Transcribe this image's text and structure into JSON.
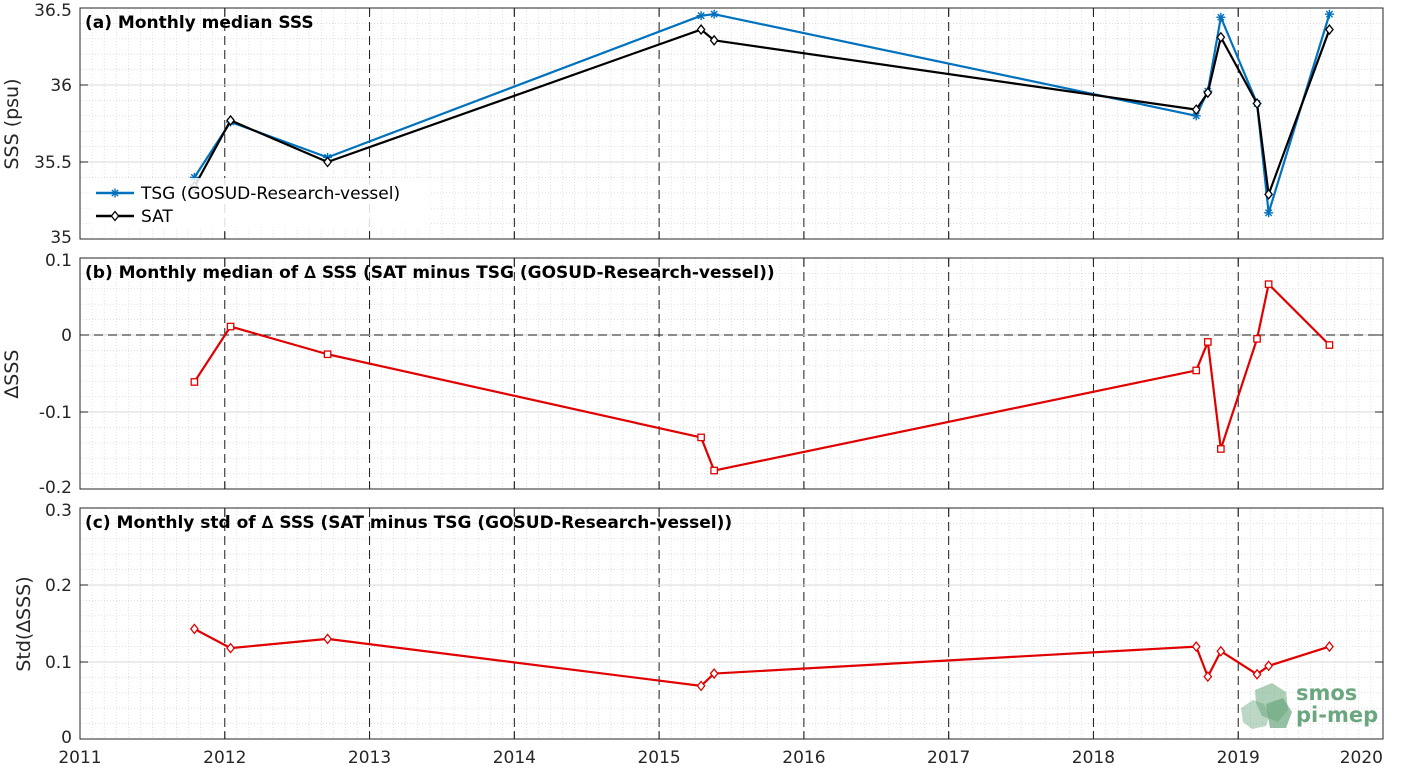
{
  "figure": {
    "logo": {
      "line1": "smos",
      "line2": "pi-mep"
    }
  },
  "chart_data": [
    {
      "type": "line",
      "title": "(a) Monthly median SSS",
      "ylabel": "SSS (psu)",
      "xlim": [
        2011,
        2020
      ],
      "ylim": [
        35,
        36.5
      ],
      "yticks": [
        35,
        35.5,
        36,
        36.5
      ],
      "ytick_labels": [
        "35",
        "35.5",
        "36",
        "36.5"
      ],
      "grid": true,
      "legend_position": "bottom-left",
      "series": [
        {
          "name": "TSG (GOSUD-Research-vessel)",
          "color": "#0072bd",
          "marker": "star",
          "x": [
            2011.79,
            2012.04,
            2012.71,
            2015.29,
            2015.38,
            2018.71,
            2018.79,
            2018.88,
            2019.13,
            2019.21,
            2019.63
          ],
          "y": [
            35.4,
            35.76,
            35.53,
            36.45,
            36.46,
            35.8,
            35.96,
            36.44,
            35.88,
            35.17,
            36.46
          ]
        },
        {
          "name": "SAT",
          "color": "#000000",
          "marker": "diamond",
          "x": [
            2011.79,
            2012.04,
            2012.71,
            2015.29,
            2015.38,
            2018.71,
            2018.79,
            2018.88,
            2019.13,
            2019.21,
            2019.63
          ],
          "y": [
            35.34,
            35.77,
            35.5,
            36.36,
            36.29,
            35.84,
            35.95,
            36.31,
            35.88,
            35.29,
            36.36
          ]
        }
      ]
    },
    {
      "type": "line",
      "title": "(b) Monthly median of ∆ SSS (SAT minus TSG (GOSUD-Research-vessel))",
      "ylabel": "∆SSS",
      "xlim": [
        2011,
        2020
      ],
      "ylim": [
        -0.2,
        0.1
      ],
      "yticks": [
        -0.2,
        -0.1,
        0,
        0.1
      ],
      "ytick_labels": [
        "-0.2",
        "-0.1",
        "0",
        "0.1"
      ],
      "grid": true,
      "zero_line": true,
      "series": [
        {
          "color": "#e00000",
          "marker": "square",
          "x": [
            2011.79,
            2012.04,
            2012.71,
            2015.29,
            2015.38,
            2018.71,
            2018.79,
            2018.88,
            2019.13,
            2019.21,
            2019.63
          ],
          "y": [
            -0.061,
            0.011,
            -0.025,
            -0.133,
            -0.176,
            -0.046,
            -0.009,
            -0.148,
            -0.005,
            0.066,
            -0.013
          ]
        }
      ]
    },
    {
      "type": "line",
      "title": "(c) Monthly std of ∆ SSS (SAT minus TSG (GOSUD-Research-vessel))",
      "ylabel": "Std(∆SSS)",
      "xlim": [
        2011,
        2020
      ],
      "ylim": [
        0,
        0.3
      ],
      "yticks": [
        0,
        0.1,
        0.2,
        0.3
      ],
      "ytick_labels": [
        "0",
        "0.1",
        "0.2",
        "0.3"
      ],
      "xticks": [
        2011,
        2012,
        2013,
        2014,
        2015,
        2016,
        2017,
        2018,
        2019,
        2020
      ],
      "xtick_labels": [
        "2011",
        "2012",
        "2013",
        "2014",
        "2015",
        "2016",
        "2017",
        "2018",
        "2019",
        "2020"
      ],
      "grid": true,
      "series": [
        {
          "color": "#e00000",
          "marker": "diamond",
          "x": [
            2011.79,
            2012.04,
            2012.71,
            2015.29,
            2015.38,
            2018.71,
            2018.79,
            2018.88,
            2019.13,
            2019.21,
            2019.63
          ],
          "y": [
            0.143,
            0.118,
            0.13,
            0.069,
            0.085,
            0.12,
            0.081,
            0.114,
            0.084,
            0.095,
            0.12
          ]
        }
      ]
    }
  ]
}
